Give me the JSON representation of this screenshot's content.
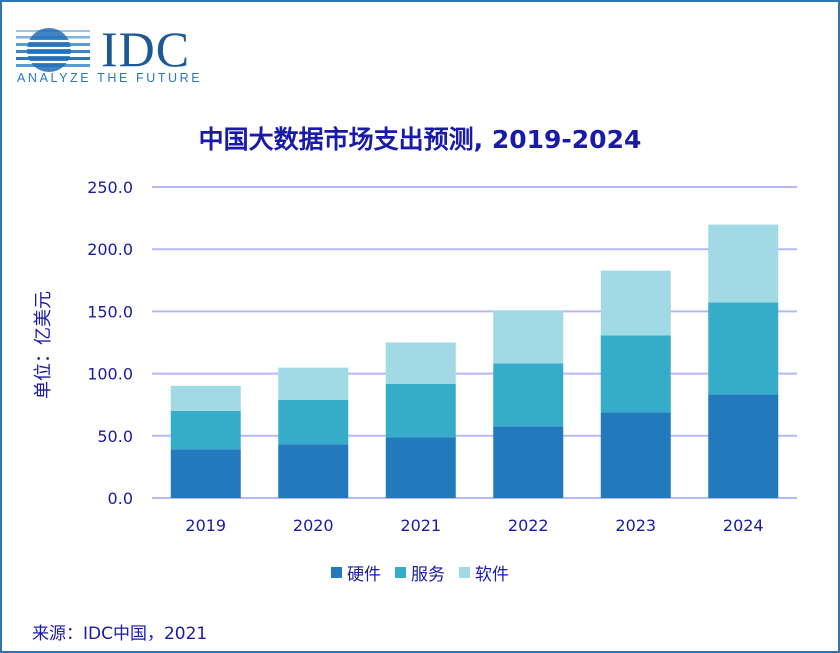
{
  "logo": {
    "name": "IDC",
    "tagline": "ANALYZE THE FUTURE"
  },
  "source": "来源：IDC中国，2021",
  "chart_data": {
    "type": "bar",
    "stacked": true,
    "title": "中国大数据市场支出预测, 2019-2024",
    "xlabel": "",
    "ylabel": "单位：亿美元",
    "ylim": [
      0,
      250
    ],
    "yticks": [
      "0.0",
      "50.0",
      "100.0",
      "150.0",
      "200.0",
      "250.0"
    ],
    "grid": true,
    "legend_position": "bottom",
    "categories": [
      "2019",
      "2020",
      "2021",
      "2022",
      "2023",
      "2024"
    ],
    "series": [
      {
        "name": "硬件",
        "color": "#2279bc",
        "values": [
          39.1,
          43.2,
          48.9,
          57.6,
          68.8,
          83.3
        ]
      },
      {
        "name": "服务",
        "color": "#36adc8",
        "values": [
          30.9,
          35.6,
          42.9,
          50.6,
          61.9,
          73.9
        ]
      },
      {
        "name": "软件",
        "color": "#a1dae5",
        "values": [
          20.2,
          26.0,
          33.2,
          42.6,
          52.1,
          62.6
        ]
      }
    ]
  }
}
